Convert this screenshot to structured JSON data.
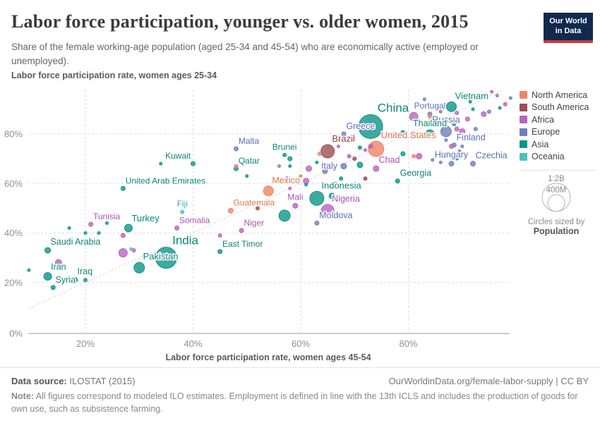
{
  "header": {
    "title": "Labor force participation, younger vs. older women, 2015",
    "subtitle": "Share of the female working-age population (aged 25-34 and 45-54) who are economically active (employed or unemployed).",
    "logo_line1": "Our World",
    "logo_line2": "in Data"
  },
  "legend": {
    "items": [
      {
        "label": "North America",
        "key": "NA"
      },
      {
        "label": "South America",
        "key": "SA"
      },
      {
        "label": "Africa",
        "key": "AF"
      },
      {
        "label": "Europe",
        "key": "EU"
      },
      {
        "label": "Asia",
        "key": "AS"
      },
      {
        "label": "Oceania",
        "key": "OC"
      }
    ],
    "size_legend": {
      "outer_label": "1:2B",
      "inner_label": "400M",
      "caption_line1": "Circles sized by",
      "caption_line2": "Population"
    }
  },
  "colors": {
    "NA": "#EE8567",
    "SA": "#9B4E53",
    "AF": "#B666BC",
    "EU": "#6E80BE",
    "AS": "#0F9588",
    "OC": "#55BEBF",
    "label_NA": "#E2724F",
    "label_SA": "#8D4046",
    "label_AF": "#A854AE",
    "label_EU": "#5B6FB5",
    "label_AS": "#0C8575",
    "label_OC": "#3FAEB0",
    "grid": "#dedede",
    "axis": "#999999",
    "tick_text": "#8f8f8f",
    "identity_line": "#cccccc",
    "logo_bg": "#12294e",
    "logo_underline": "#cf3a3a"
  },
  "chart_data": {
    "type": "scatter",
    "title": "Labor force participation, younger vs. older women, 2015",
    "xlabel": "Labor force participation rate, women ages 45-54",
    "ylabel": "Labor force participation rate, women ages 25-34",
    "x_ticks": [
      20,
      40,
      60,
      80
    ],
    "y_ticks": [
      0,
      20,
      40,
      60,
      80
    ],
    "x_range": [
      9,
      99
    ],
    "y_range": [
      0,
      97
    ],
    "grid": true,
    "identity_line": {
      "from": 9.5,
      "to": 97.5
    },
    "point_format": [
      "name_or_null",
      "x_pct_45_54",
      "y_pct_25_34",
      "radius_px",
      "continent",
      "label_pos_or_null",
      "label_font_size_or_null"
    ],
    "points": [
      [
        "China",
        73,
        83,
        17,
        "AS",
        "ar",
        17
      ],
      [
        "India",
        35,
        30,
        15,
        "AS",
        "ar",
        17
      ],
      [
        "United States",
        74,
        74,
        11,
        "NA",
        "ar",
        13
      ],
      [
        "Indonesia",
        63,
        54,
        10,
        "AS",
        "ar",
        13
      ],
      [
        "Brazil",
        65,
        73,
        9.5,
        "SA",
        "ar",
        13
      ],
      [
        "Nigeria",
        65,
        49,
        9,
        "AF",
        "ar",
        12.5
      ],
      [
        "Pakistan",
        30,
        26,
        7.5,
        "AS",
        "ar",
        13
      ],
      [
        "Russia",
        87,
        81,
        7.5,
        "EU",
        "above",
        13
      ],
      [
        "Mexico",
        54,
        57,
        7,
        "NA",
        "ar",
        12.5
      ],
      [
        "Vietnam",
        88,
        91,
        7,
        "AS",
        "ar",
        13
      ],
      [
        "Thailand",
        84,
        80,
        6,
        "AS",
        "above",
        12.5
      ],
      [
        "Turkey",
        28,
        42,
        5.5,
        "AS",
        "ar",
        13
      ],
      [
        "Iran",
        13,
        22.5,
        5.5,
        "AS",
        "ar",
        12.5
      ],
      [
        "Chad",
        74,
        66,
        4,
        "AF",
        "ar",
        12.5
      ],
      [
        "Italy",
        68,
        67,
        4,
        "EU",
        "left",
        12.5
      ],
      [
        "Iraq",
        18,
        21,
        4,
        "AS",
        "ar",
        12.5
      ],
      [
        "Saudi Arabia",
        13,
        33,
        4,
        "AS",
        "ar",
        12.5
      ],
      [
        "Mali",
        59,
        51,
        3.5,
        "AF",
        "above",
        12
      ],
      [
        "Hungary",
        88,
        68,
        3.5,
        "EU",
        "above",
        12.5
      ],
      [
        "Czechia",
        92,
        68,
        3.5,
        "EU",
        "ar",
        12.5
      ],
      [
        "Guatemala",
        47,
        49,
        3.5,
        "NA",
        "ar",
        12
      ],
      [
        "Greece",
        68,
        80,
        3,
        "EU",
        "ar",
        12.5
      ],
      [
        "Portugal",
        84,
        88,
        3,
        "EU",
        "above",
        12
      ],
      [
        "Finland",
        88.5,
        75.5,
        3,
        "EU",
        "ar",
        12.5
      ],
      [
        "Georgia",
        78,
        61,
        3,
        "AS",
        "ar",
        12.5
      ],
      [
        "Moldova",
        63,
        44,
        3,
        "EU",
        "ar",
        12.5
      ],
      [
        "Malta",
        48,
        74,
        3,
        "EU",
        "ar",
        12
      ],
      [
        "Qatar",
        48,
        66,
        3,
        "AS",
        "ar",
        12
      ],
      [
        "Kuwait",
        40,
        68,
        3,
        "AS",
        "al",
        12
      ],
      [
        "United Arab Emirates",
        27,
        58,
        3,
        "AS",
        "ar",
        12
      ],
      [
        "Somalia",
        37,
        42,
        3,
        "AF",
        "ar",
        12
      ],
      [
        "Tunisia",
        21,
        43.5,
        3,
        "AF",
        "ar",
        12
      ],
      [
        "Niger",
        49,
        41,
        3,
        "AF",
        "ar",
        12
      ],
      [
        "East Timor",
        45,
        32.5,
        3,
        "AS",
        "ar",
        12
      ],
      [
        "Syria",
        14,
        18,
        3,
        "AS",
        "ar",
        12.5
      ],
      [
        "Brunei",
        57,
        71.5,
        2.5,
        "AS",
        "above",
        12
      ],
      [
        "Fiji",
        38,
        48.5,
        2.5,
        "OC",
        "above",
        12
      ],
      [
        null,
        95.5,
        97,
        2,
        "AF",
        null,
        null
      ],
      [
        null,
        96.5,
        95.5,
        2,
        "AF",
        null,
        null
      ],
      [
        null,
        98,
        92,
        2.5,
        "AF",
        null,
        null
      ],
      [
        null,
        99,
        94.5,
        2,
        "EU",
        null,
        null
      ],
      [
        null,
        97,
        90.5,
        2,
        "AS",
        null,
        null
      ],
      [
        null,
        94,
        88,
        3.5,
        "AF",
        null,
        null
      ],
      [
        null,
        92,
        90,
        2,
        "AS",
        null,
        null
      ],
      [
        null,
        91.5,
        93,
        2,
        "AS",
        null,
        null
      ],
      [
        null,
        89,
        88.5,
        2.5,
        "AF",
        null,
        null
      ],
      [
        null,
        86,
        89,
        2,
        "AF",
        null,
        null
      ],
      [
        null,
        83,
        94,
        2,
        "EU",
        null,
        null
      ],
      [
        null,
        84,
        87,
        2.5,
        "NA",
        null,
        null
      ],
      [
        null,
        81,
        87,
        6,
        "AF",
        null,
        null
      ],
      [
        null,
        88.5,
        84,
        2.5,
        "AS",
        null,
        null
      ],
      [
        null,
        85,
        85,
        2.5,
        "AS",
        null,
        null
      ],
      [
        null,
        90,
        81,
        4,
        "AF",
        null,
        null
      ],
      [
        null,
        89,
        82,
        3,
        "AF",
        null,
        null
      ],
      [
        null,
        92.5,
        82,
        2.5,
        "EU",
        null,
        null
      ],
      [
        null,
        91,
        86,
        3,
        "AF",
        null,
        null
      ],
      [
        null,
        95,
        89,
        2.5,
        "EU",
        null,
        null
      ],
      [
        null,
        79,
        80.5,
        3,
        "AS",
        null,
        null
      ],
      [
        null,
        88,
        75,
        3,
        "AF",
        null,
        null
      ],
      [
        null,
        90,
        75,
        2,
        "EU",
        null,
        null
      ],
      [
        null,
        87,
        77.5,
        2,
        "EU",
        null,
        null
      ],
      [
        null,
        89.5,
        73,
        2,
        "EU",
        null,
        null
      ],
      [
        null,
        84.5,
        69.5,
        2,
        "EU",
        null,
        null
      ],
      [
        null,
        86,
        68.5,
        2,
        "EU",
        null,
        null
      ],
      [
        null,
        82,
        71,
        4,
        "AF",
        null,
        null
      ],
      [
        null,
        81,
        71,
        2.5,
        "NA",
        null,
        null
      ],
      [
        null,
        79,
        72,
        3,
        "AS",
        null,
        null
      ],
      [
        null,
        76,
        69,
        2.5,
        "EU",
        null,
        null
      ],
      [
        null,
        89,
        70,
        2,
        "AS",
        null,
        null
      ],
      [
        null,
        73,
        75,
        3,
        "AF",
        null,
        null
      ],
      [
        null,
        71,
        74.5,
        2.5,
        "AS",
        null,
        null
      ],
      [
        null,
        72,
        73.5,
        2,
        "AF",
        null,
        null
      ],
      [
        null,
        70,
        70,
        2.5,
        "SA",
        null,
        null
      ],
      [
        null,
        71,
        67.5,
        4,
        "AS",
        null,
        null
      ],
      [
        null,
        69,
        71,
        2.5,
        "AF",
        null,
        null
      ],
      [
        null,
        67,
        75,
        2,
        "AF",
        null,
        null
      ],
      [
        null,
        63.5,
        72,
        2.5,
        "NA",
        null,
        null
      ],
      [
        null,
        61.5,
        66,
        4,
        "AF",
        null,
        null
      ],
      [
        null,
        64.5,
        65,
        3.5,
        "EU",
        null,
        null
      ],
      [
        null,
        63,
        68.5,
        2,
        "AS",
        null,
        null
      ],
      [
        null,
        61,
        61,
        4,
        "AF",
        null,
        null
      ],
      [
        null,
        60,
        63,
        2,
        "NA",
        null,
        null
      ],
      [
        null,
        66.5,
        60,
        2,
        "NA",
        null,
        null
      ],
      [
        null,
        67.5,
        62,
        2.5,
        "AS",
        null,
        null
      ],
      [
        null,
        72,
        62,
        2.5,
        "SA",
        null,
        null
      ],
      [
        null,
        65.8,
        55,
        4,
        "AS",
        null,
        null
      ],
      [
        null,
        57.5,
        62,
        2.5,
        "AF",
        null,
        null
      ],
      [
        null,
        58,
        58,
        2,
        "AF",
        null,
        null
      ],
      [
        null,
        61,
        59.5,
        2,
        "AS",
        null,
        null
      ],
      [
        null,
        58,
        70,
        3,
        "AS",
        null,
        null
      ],
      [
        null,
        58,
        67,
        2,
        "AS",
        null,
        null
      ],
      [
        null,
        56,
        67,
        2,
        "AF",
        null,
        null
      ],
      [
        null,
        54,
        52.5,
        2,
        "AF",
        null,
        null
      ],
      [
        null,
        52,
        50,
        2.5,
        "SA",
        null,
        null
      ],
      [
        null,
        50,
        63,
        2,
        "AS",
        null,
        null
      ],
      [
        null,
        48,
        67,
        2.5,
        "NA",
        null,
        null
      ],
      [
        null,
        57,
        47,
        8,
        "AS",
        null,
        null
      ],
      [
        null,
        20,
        40,
        2,
        "AS",
        null,
        null
      ],
      [
        null,
        22.5,
        40,
        2,
        "AS",
        null,
        null
      ],
      [
        null,
        27,
        39,
        3,
        "AF",
        null,
        null
      ],
      [
        null,
        15,
        28,
        4.5,
        "AF",
        null,
        null
      ],
      [
        null,
        9.5,
        25,
        2,
        "AS",
        null,
        null
      ],
      [
        null,
        27,
        32,
        6,
        "AF",
        null,
        null
      ],
      [
        null,
        29,
        33,
        2.5,
        "AF",
        null,
        null
      ],
      [
        null,
        28.5,
        33.5,
        2,
        "OC",
        null,
        null
      ],
      [
        null,
        20,
        21,
        2.5,
        "AS",
        null,
        null
      ],
      [
        null,
        24,
        44,
        2,
        "AS",
        null,
        null
      ],
      [
        null,
        17,
        42,
        2,
        "AS",
        null,
        null
      ],
      [
        null,
        34,
        68,
        2,
        "AS",
        null,
        null
      ],
      [
        null,
        45,
        39,
        2.5,
        "AF",
        null,
        null
      ]
    ]
  },
  "footer": {
    "source_label": "Data source:",
    "source_value": " ILOSTAT (2015)",
    "link": "OurWorldinData.org/female-labor-supply | CC BY",
    "note_label": "Note:",
    "note_value": " All figures correspond to modeled ILO estimates. Employment is defined in line with the 13th ICLS and includes the production of goods for own use, such as subsistence farming."
  }
}
